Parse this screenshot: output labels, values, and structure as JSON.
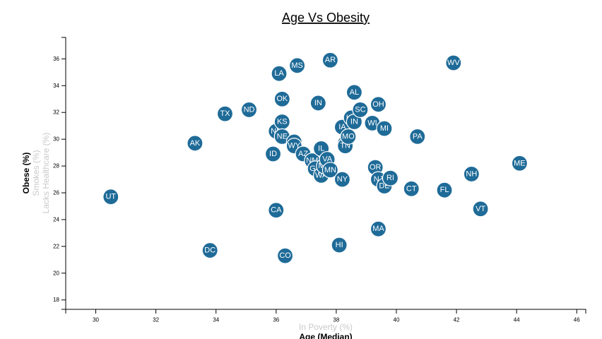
{
  "chart_data": {
    "type": "scatter",
    "title": "Age Vs Obesity",
    "xlim": [
      29,
      46.3
    ],
    "ylim": [
      17.3,
      37.6
    ],
    "x_ticks": [
      30,
      32,
      34,
      36,
      38,
      40,
      42,
      44,
      46
    ],
    "y_ticks": [
      18,
      20,
      22,
      24,
      26,
      28,
      30,
      32,
      34,
      36
    ],
    "x_axis_labels": [
      {
        "label": "In Poverty (%)",
        "active": false
      },
      {
        "label": "Age (Median)",
        "active": true
      }
    ],
    "y_axis_labels": [
      {
        "label": "Obese (%)",
        "active": true
      },
      {
        "label": "Smokes (%)",
        "active": false
      },
      {
        "label": "Lacks Healthcare (%)",
        "active": false
      }
    ],
    "points": [
      {
        "abbr": "UT",
        "x": 30.5,
        "y": 25.7
      },
      {
        "abbr": "AK",
        "x": 33.3,
        "y": 29.7
      },
      {
        "abbr": "DC",
        "x": 33.8,
        "y": 21.7
      },
      {
        "abbr": "TX",
        "x": 34.3,
        "y": 31.9
      },
      {
        "abbr": "ND",
        "x": 35.1,
        "y": 32.2
      },
      {
        "abbr": "ID",
        "x": 35.9,
        "y": 28.9
      },
      {
        "abbr": "CA",
        "x": 36.0,
        "y": 24.7
      },
      {
        "abbr": "NE",
        "x": 36.0,
        "y": 30.6
      },
      {
        "abbr": "LA",
        "x": 36.1,
        "y": 34.9
      },
      {
        "abbr": "OK",
        "x": 36.2,
        "y": 33.0
      },
      {
        "abbr": "KS",
        "x": 36.2,
        "y": 31.3
      },
      {
        "abbr": "NE",
        "x": 36.2,
        "y": 30.2
      },
      {
        "abbr": "CO",
        "x": 36.3,
        "y": 21.3
      },
      {
        "abbr": "SD",
        "x": 36.6,
        "y": 29.8
      },
      {
        "abbr": "WY",
        "x": 36.6,
        "y": 29.5
      },
      {
        "abbr": "MS",
        "x": 36.7,
        "y": 35.5
      },
      {
        "abbr": "AZ",
        "x": 36.9,
        "y": 28.9
      },
      {
        "abbr": "NM",
        "x": 37.2,
        "y": 28.4
      },
      {
        "abbr": "GA",
        "x": 37.3,
        "y": 27.8
      },
      {
        "abbr": "IN",
        "x": 37.4,
        "y": 32.7
      },
      {
        "abbr": "IL",
        "x": 37.5,
        "y": 29.3
      },
      {
        "abbr": "WA",
        "x": 37.5,
        "y": 27.3
      },
      {
        "abbr": "MD",
        "x": 37.6,
        "y": 28.0
      },
      {
        "abbr": "VA",
        "x": 37.7,
        "y": 28.5
      },
      {
        "abbr": "MN",
        "x": 37.8,
        "y": 27.7
      },
      {
        "abbr": "AR",
        "x": 37.8,
        "y": 35.9
      },
      {
        "abbr": "HI",
        "x": 38.1,
        "y": 22.1
      },
      {
        "abbr": "NY",
        "x": 38.2,
        "y": 27.0
      },
      {
        "abbr": "IA",
        "x": 38.2,
        "y": 30.9
      },
      {
        "abbr": "NC",
        "x": 38.3,
        "y": 29.7
      },
      {
        "abbr": "TN",
        "x": 38.3,
        "y": 29.5
      },
      {
        "abbr": "MO",
        "x": 38.4,
        "y": 30.2
      },
      {
        "abbr": "KY",
        "x": 38.5,
        "y": 31.6
      },
      {
        "abbr": "IN",
        "x": 38.6,
        "y": 31.3
      },
      {
        "abbr": "AL",
        "x": 38.6,
        "y": 33.5
      },
      {
        "abbr": "SC",
        "x": 38.8,
        "y": 32.2
      },
      {
        "abbr": "WI",
        "x": 39.2,
        "y": 31.2
      },
      {
        "abbr": "OR",
        "x": 39.3,
        "y": 27.9
      },
      {
        "abbr": "OH",
        "x": 39.4,
        "y": 32.6
      },
      {
        "abbr": "NJ",
        "x": 39.4,
        "y": 27.0
      },
      {
        "abbr": "DE",
        "x": 39.6,
        "y": 26.5
      },
      {
        "abbr": "MI",
        "x": 39.6,
        "y": 30.8
      },
      {
        "abbr": "MA",
        "x": 39.4,
        "y": 23.3
      },
      {
        "abbr": "RI",
        "x": 39.8,
        "y": 27.1
      },
      {
        "abbr": "PA",
        "x": 40.7,
        "y": 30.2
      },
      {
        "abbr": "CT",
        "x": 40.5,
        "y": 26.3
      },
      {
        "abbr": "FL",
        "x": 41.6,
        "y": 26.2
      },
      {
        "abbr": "WV",
        "x": 41.9,
        "y": 35.7
      },
      {
        "abbr": "NH",
        "x": 42.5,
        "y": 27.4
      },
      {
        "abbr": "VT",
        "x": 42.8,
        "y": 24.8
      },
      {
        "abbr": "ME",
        "x": 44.1,
        "y": 28.2
      }
    ]
  }
}
